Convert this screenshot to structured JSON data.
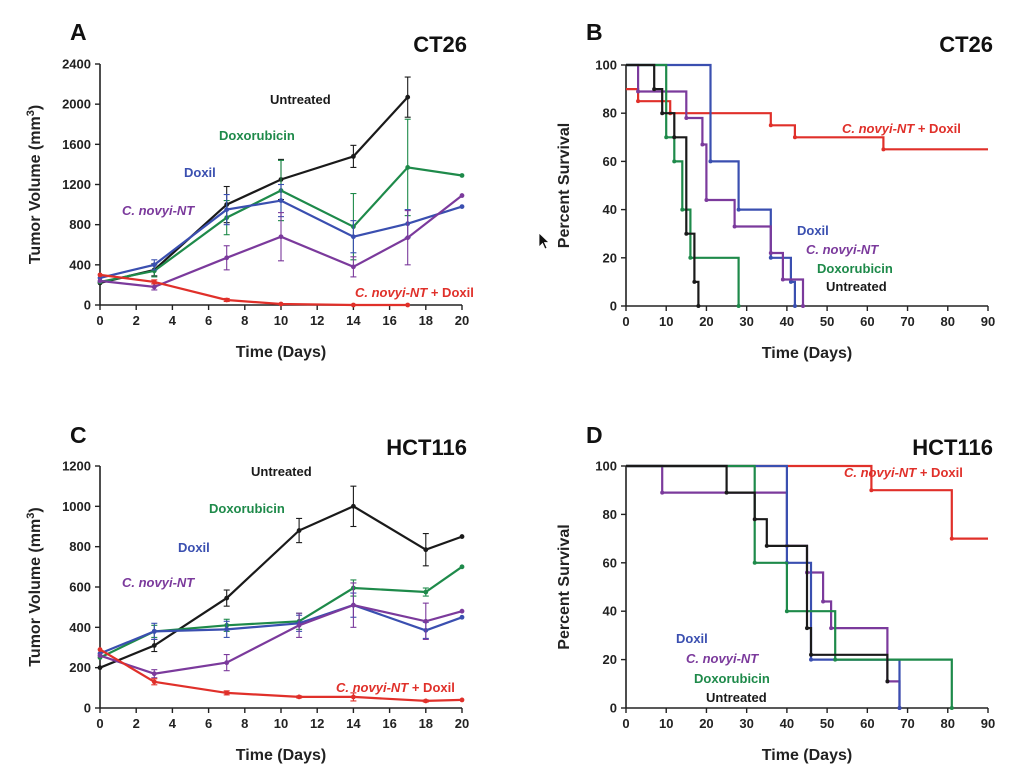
{
  "chart_data": [
    {
      "id": "A",
      "type": "line",
      "panel": "A",
      "title": "CT26",
      "xlabel": "Time (Days)",
      "ylabel": "Tumor Volume (mm",
      "ylabel_sup": "3",
      "ylabel_end": ")",
      "xlim": [
        0,
        20
      ],
      "ylim": [
        0,
        2400
      ],
      "xticks": [
        "0",
        "2",
        "4",
        "6",
        "8",
        "10",
        "12",
        "14",
        "16",
        "18",
        "20"
      ],
      "yticks": [
        "0",
        "400",
        "800",
        "1200",
        "1600",
        "2000",
        "2400"
      ],
      "series": [
        {
          "name": "Untreated",
          "color": "#1a1a1a",
          "x": [
            0,
            3,
            7,
            10,
            14,
            17
          ],
          "y": [
            220,
            350,
            1000,
            1250,
            1480,
            2070
          ],
          "err": [
            0,
            60,
            180,
            200,
            110,
            200
          ]
        },
        {
          "name": "Doxorubicin",
          "color": "#1e8a4a",
          "x": [
            0,
            3,
            7,
            10,
            14,
            17,
            20
          ],
          "y": [
            230,
            340,
            870,
            1140,
            780,
            1370,
            1290
          ],
          "err": [
            0,
            60,
            170,
            300,
            330,
            480,
            0
          ]
        },
        {
          "name": "Doxil",
          "color": "#3a4fb0",
          "x": [
            0,
            3,
            7,
            10,
            14,
            17,
            20
          ],
          "y": [
            270,
            400,
            950,
            1040,
            680,
            810,
            980
          ],
          "err": [
            0,
            50,
            150,
            160,
            160,
            140,
            0
          ]
        },
        {
          "name": "C. novyi-NT",
          "color": "#7b3a9c",
          "x": [
            0,
            3,
            7,
            10,
            14,
            17,
            20
          ],
          "y": [
            240,
            180,
            470,
            680,
            380,
            670,
            1090
          ],
          "err": [
            0,
            30,
            120,
            240,
            100,
            270,
            0
          ]
        },
        {
          "name": "C. novyi-NT + Doxil",
          "color": "#e0302a",
          "x": [
            0,
            3,
            7,
            10,
            14,
            17
          ],
          "y": [
            300,
            230,
            50,
            10,
            0,
            0
          ],
          "err": [
            0,
            20,
            15,
            0,
            0,
            0
          ]
        }
      ],
      "labels": [
        {
          "text": "Untreated",
          "color": "#1a1a1a",
          "italic": false
        },
        {
          "text": "Doxorubicin",
          "color": "#1e8a4a",
          "italic": false
        },
        {
          "text": "Doxil",
          "color": "#3a4fb0",
          "italic": false
        },
        {
          "text": "C. novyi-NT",
          "color": "#7b3a9c",
          "italic": true
        },
        {
          "text": "C. novyi-NT",
          "suffix": " + Doxil",
          "color": "#e0302a",
          "italic": true
        }
      ]
    },
    {
      "id": "B",
      "type": "line",
      "panel": "B",
      "title": "CT26",
      "xlabel": "Time (Days)",
      "ylabel": "Percent Survival",
      "xlim": [
        0,
        90
      ],
      "ylim": [
        0,
        100
      ],
      "xticks": [
        "0",
        "10",
        "20",
        "30",
        "40",
        "50",
        "60",
        "70",
        "80",
        "90"
      ],
      "yticks": [
        "0",
        "20",
        "40",
        "60",
        "80",
        "100"
      ],
      "series": [
        {
          "name": "C. novyi-NT + Doxil",
          "color": "#e0302a",
          "x": [
            0,
            3,
            3,
            11,
            11,
            36,
            36,
            42,
            42,
            64,
            64,
            90
          ],
          "y": [
            90,
            90,
            85,
            85,
            80,
            80,
            75,
            75,
            70,
            70,
            65,
            65
          ]
        },
        {
          "name": "Doxil",
          "color": "#3a4fb0",
          "x": [
            0,
            21,
            21,
            28,
            28,
            36,
            36,
            41,
            41,
            42,
            42
          ],
          "y": [
            100,
            100,
            60,
            60,
            40,
            40,
            20,
            20,
            10,
            10,
            0
          ]
        },
        {
          "name": "C. novyi-NT",
          "color": "#7b3a9c",
          "x": [
            0,
            3,
            3,
            15,
            15,
            19,
            19,
            20,
            20,
            27,
            27,
            36,
            36,
            39,
            39,
            44,
            44
          ],
          "y": [
            100,
            100,
            89,
            89,
            78,
            78,
            67,
            67,
            44,
            44,
            33,
            33,
            22,
            22,
            11,
            11,
            0
          ]
        },
        {
          "name": "Doxorubicin",
          "color": "#1e8a4a",
          "x": [
            0,
            10,
            10,
            12,
            12,
            14,
            14,
            16,
            16,
            18,
            18,
            28,
            28
          ],
          "y": [
            100,
            100,
            70,
            70,
            60,
            60,
            40,
            40,
            20,
            20,
            20,
            20,
            0
          ]
        },
        {
          "name": "Untreated",
          "color": "#1a1a1a",
          "x": [
            0,
            7,
            7,
            9,
            9,
            12,
            12,
            15,
            15,
            17,
            17,
            18,
            18
          ],
          "y": [
            100,
            100,
            90,
            90,
            80,
            80,
            70,
            70,
            30,
            30,
            10,
            10,
            0
          ]
        }
      ],
      "labels": [
        {
          "text": "C. novyi-NT",
          "suffix": " + Doxil",
          "color": "#e0302a",
          "italic": true
        },
        {
          "text": "Doxil",
          "color": "#3a4fb0",
          "italic": false
        },
        {
          "text": "C. novyi-NT",
          "color": "#7b3a9c",
          "italic": true
        },
        {
          "text": "Doxorubicin",
          "color": "#1e8a4a",
          "italic": false
        },
        {
          "text": "Untreated",
          "color": "#1a1a1a",
          "italic": false
        }
      ]
    },
    {
      "id": "C",
      "type": "line",
      "panel": "C",
      "title": "HCT116",
      "xlabel": "Time (Days)",
      "ylabel": "Tumor Volume (mm",
      "ylabel_sup": "3",
      "ylabel_end": ")",
      "xlim": [
        0,
        20
      ],
      "ylim": [
        0,
        1200
      ],
      "xticks": [
        "0",
        "2",
        "4",
        "6",
        "8",
        "10",
        "12",
        "14",
        "16",
        "18",
        "20"
      ],
      "yticks": [
        "0",
        "200",
        "400",
        "600",
        "800",
        "1000",
        "1200"
      ],
      "series": [
        {
          "name": "Untreated",
          "color": "#1a1a1a",
          "x": [
            0,
            3,
            7,
            11,
            14,
            18,
            20
          ],
          "y": [
            200,
            310,
            545,
            880,
            1000,
            785,
            850
          ],
          "err": [
            0,
            30,
            40,
            60,
            100,
            80,
            0
          ]
        },
        {
          "name": "Doxorubicin",
          "color": "#1e8a4a",
          "x": [
            0,
            3,
            7,
            11,
            14,
            18,
            20
          ],
          "y": [
            250,
            380,
            410,
            430,
            595,
            575,
            700
          ],
          "err": [
            0,
            30,
            30,
            40,
            40,
            20,
            0
          ]
        },
        {
          "name": "Doxil",
          "color": "#3a4fb0",
          "x": [
            0,
            3,
            7,
            11,
            14,
            18,
            20
          ],
          "y": [
            270,
            380,
            390,
            420,
            510,
            385,
            450
          ],
          "err": [
            0,
            40,
            40,
            40,
            60,
            40,
            0
          ]
        },
        {
          "name": "C. novyi-NT",
          "color": "#7b3a9c",
          "x": [
            0,
            3,
            7,
            11,
            14,
            18,
            20
          ],
          "y": [
            260,
            170,
            225,
            410,
            510,
            430,
            480
          ],
          "err": [
            0,
            20,
            40,
            60,
            110,
            90,
            0
          ]
        },
        {
          "name": "C. novyi-NT + Doxil",
          "color": "#e0302a",
          "x": [
            0,
            3,
            7,
            11,
            14,
            18,
            20
          ],
          "y": [
            290,
            130,
            75,
            55,
            55,
            35,
            40
          ],
          "err": [
            0,
            15,
            10,
            5,
            20,
            5,
            0
          ]
        }
      ],
      "labels": [
        {
          "text": "Untreated",
          "color": "#1a1a1a",
          "italic": false
        },
        {
          "text": "Doxorubicin",
          "color": "#1e8a4a",
          "italic": false
        },
        {
          "text": "Doxil",
          "color": "#3a4fb0",
          "italic": false
        },
        {
          "text": "C. novyi-NT",
          "color": "#7b3a9c",
          "italic": true
        },
        {
          "text": "C. novyi-NT",
          "suffix": " + Doxil",
          "color": "#e0302a",
          "italic": true
        }
      ]
    },
    {
      "id": "D",
      "type": "line",
      "panel": "D",
      "title": "HCT116",
      "xlabel": "Time (Days)",
      "ylabel": "Percent Survival",
      "xlim": [
        0,
        90
      ],
      "ylim": [
        0,
        100
      ],
      "xticks": [
        "0",
        "10",
        "20",
        "30",
        "40",
        "50",
        "60",
        "70",
        "80",
        "90"
      ],
      "yticks": [
        "0",
        "20",
        "40",
        "60",
        "80",
        "100"
      ],
      "series": [
        {
          "name": "C. novyi-NT + Doxil",
          "color": "#e0302a",
          "x": [
            0,
            61,
            61,
            81,
            81,
            90
          ],
          "y": [
            100,
            100,
            90,
            90,
            70,
            70
          ]
        },
        {
          "name": "C. novyi-NT",
          "color": "#7b3a9c",
          "x": [
            0,
            9,
            9,
            40,
            40,
            45,
            45,
            49,
            49,
            51,
            51,
            52,
            52,
            65,
            65,
            68,
            68
          ],
          "y": [
            100,
            100,
            89,
            89,
            67,
            67,
            56,
            56,
            44,
            44,
            33,
            33,
            33,
            33,
            11,
            11,
            0
          ]
        },
        {
          "name": "Doxil",
          "color": "#3a4fb0",
          "x": [
            0,
            40,
            40,
            46,
            46,
            68,
            68
          ],
          "y": [
            100,
            100,
            60,
            60,
            20,
            20,
            0
          ]
        },
        {
          "name": "Doxorubicin",
          "color": "#1e8a4a",
          "x": [
            0,
            32,
            32,
            40,
            40,
            52,
            52,
            81,
            81
          ],
          "y": [
            100,
            100,
            60,
            60,
            40,
            40,
            20,
            20,
            0
          ]
        },
        {
          "name": "Untreated",
          "color": "#1a1a1a",
          "x": [
            0,
            25,
            25,
            32,
            32,
            35,
            35,
            45,
            45,
            46,
            46,
            65,
            65
          ],
          "y": [
            100,
            100,
            89,
            89,
            78,
            78,
            67,
            67,
            33,
            33,
            22,
            22,
            11
          ]
        }
      ],
      "labels": [
        {
          "text": "C. novyi-NT",
          "suffix": " + Doxil",
          "color": "#e0302a",
          "italic": true
        },
        {
          "text": "Doxil",
          "color": "#3a4fb0",
          "italic": false
        },
        {
          "text": "C. novyi-NT",
          "color": "#7b3a9c",
          "italic": true
        },
        {
          "text": "Doxorubicin",
          "color": "#1e8a4a",
          "italic": false
        },
        {
          "text": "Untreated",
          "color": "#1a1a1a",
          "italic": false
        }
      ]
    }
  ]
}
